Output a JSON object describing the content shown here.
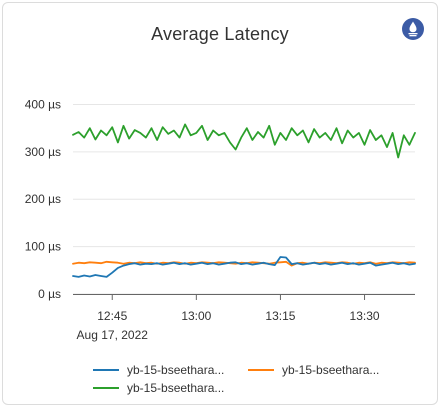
{
  "panel": {
    "title": "Average Latency"
  },
  "colors": {
    "blue": "#1f77b4",
    "orange": "#ff7f0e",
    "green": "#2ca02c",
    "logo": "#3b5ba5",
    "grid": "#e6e6e6",
    "axis": "#666666"
  },
  "chart_data": {
    "type": "line",
    "title": "Average Latency",
    "xlabel": "",
    "ylabel": "",
    "date_label": "Aug 17, 2022",
    "x_ticks": [
      "12:45",
      "13:00",
      "13:15",
      "13:30"
    ],
    "y_ticks": [
      "0 µs",
      "100 µs",
      "200 µs",
      "300 µs",
      "400 µs"
    ],
    "ylim": [
      0,
      420
    ],
    "xlim": [
      "12:38",
      "13:39"
    ],
    "grid": true,
    "legend_position": "bottom",
    "series": [
      {
        "name": "yb-15-bseethara...",
        "color": "#1f77b4",
        "x": [
          "12:38",
          "12:39",
          "12:40",
          "12:41",
          "12:42",
          "12:43",
          "12:44",
          "12:45",
          "12:46",
          "12:47",
          "12:48",
          "12:49",
          "12:50",
          "12:51",
          "12:52",
          "12:53",
          "12:54",
          "12:55",
          "12:56",
          "12:57",
          "12:58",
          "12:59",
          "13:00",
          "13:01",
          "13:02",
          "13:03",
          "13:04",
          "13:05",
          "13:06",
          "13:07",
          "13:08",
          "13:09",
          "13:10",
          "13:11",
          "13:12",
          "13:13",
          "13:14",
          "13:15",
          "13:16",
          "13:17",
          "13:18",
          "13:19",
          "13:20",
          "13:21",
          "13:22",
          "13:23",
          "13:24",
          "13:25",
          "13:26",
          "13:27",
          "13:28",
          "13:29",
          "13:30",
          "13:31",
          "13:32",
          "13:33",
          "13:34",
          "13:35",
          "13:36",
          "13:37",
          "13:38",
          "13:39"
        ],
        "values": [
          38,
          36,
          39,
          37,
          40,
          38,
          36,
          45,
          55,
          60,
          63,
          65,
          62,
          64,
          63,
          65,
          62,
          64,
          66,
          63,
          65,
          62,
          64,
          66,
          63,
          65,
          62,
          64,
          66,
          67,
          63,
          65,
          62,
          64,
          66,
          63,
          61,
          78,
          77,
          63,
          65,
          62,
          64,
          66,
          63,
          65,
          62,
          64,
          66,
          63,
          65,
          62,
          64,
          66,
          60,
          62,
          64,
          66,
          63,
          65,
          62,
          64
        ]
      },
      {
        "name": "yb-15-bseethara...",
        "color": "#ff7f0e",
        "x": [
          "12:38",
          "12:39",
          "12:40",
          "12:41",
          "12:42",
          "12:43",
          "12:44",
          "12:45",
          "12:46",
          "12:47",
          "12:48",
          "12:49",
          "12:50",
          "12:51",
          "12:52",
          "12:53",
          "12:54",
          "12:55",
          "12:56",
          "12:57",
          "12:58",
          "12:59",
          "13:00",
          "13:01",
          "13:02",
          "13:03",
          "13:04",
          "13:05",
          "13:06",
          "13:07",
          "13:08",
          "13:09",
          "13:10",
          "13:11",
          "13:12",
          "13:13",
          "13:14",
          "13:15",
          "13:16",
          "13:17",
          "13:18",
          "13:19",
          "13:20",
          "13:21",
          "13:22",
          "13:23",
          "13:24",
          "13:25",
          "13:26",
          "13:27",
          "13:28",
          "13:29",
          "13:30",
          "13:31",
          "13:32",
          "13:33",
          "13:34",
          "13:35",
          "13:36",
          "13:37",
          "13:38",
          "13:39"
        ],
        "values": [
          64,
          66,
          65,
          67,
          66,
          65,
          68,
          67,
          66,
          64,
          66,
          65,
          67,
          65,
          66,
          64,
          66,
          65,
          67,
          66,
          64,
          66,
          65,
          67,
          66,
          65,
          67,
          66,
          65,
          64,
          66,
          65,
          67,
          66,
          65,
          64,
          66,
          67,
          68,
          60,
          65,
          66,
          64,
          66,
          65,
          67,
          66,
          65,
          67,
          66,
          64,
          66,
          65,
          67,
          64,
          66,
          65,
          67,
          66,
          65,
          67,
          66
        ]
      },
      {
        "name": "yb-15-bseethara...",
        "color": "#2ca02c",
        "x": [
          "12:38",
          "12:39",
          "12:40",
          "12:41",
          "12:42",
          "12:43",
          "12:44",
          "12:45",
          "12:46",
          "12:47",
          "12:48",
          "12:49",
          "12:50",
          "12:51",
          "12:52",
          "12:53",
          "12:54",
          "12:55",
          "12:56",
          "12:57",
          "12:58",
          "12:59",
          "13:00",
          "13:01",
          "13:02",
          "13:03",
          "13:04",
          "13:05",
          "13:06",
          "13:07",
          "13:08",
          "13:09",
          "13:10",
          "13:11",
          "13:12",
          "13:13",
          "13:14",
          "13:15",
          "13:16",
          "13:17",
          "13:18",
          "13:19",
          "13:20",
          "13:21",
          "13:22",
          "13:23",
          "13:24",
          "13:25",
          "13:26",
          "13:27",
          "13:28",
          "13:29",
          "13:30",
          "13:31",
          "13:32",
          "13:33",
          "13:34",
          "13:35",
          "13:36",
          "13:37",
          "13:38",
          "13:39"
        ],
        "values": [
          336,
          342,
          330,
          350,
          326,
          345,
          335,
          352,
          320,
          355,
          328,
          346,
          340,
          330,
          350,
          325,
          352,
          338,
          345,
          330,
          358,
          335,
          340,
          355,
          325,
          345,
          335,
          340,
          320,
          305,
          330,
          350,
          325,
          342,
          330,
          355,
          315,
          340,
          325,
          350,
          335,
          345,
          320,
          348,
          330,
          340,
          325,
          350,
          318,
          345,
          330,
          340,
          315,
          346,
          325,
          335,
          310,
          340,
          288,
          335,
          315,
          340
        ]
      }
    ]
  }
}
